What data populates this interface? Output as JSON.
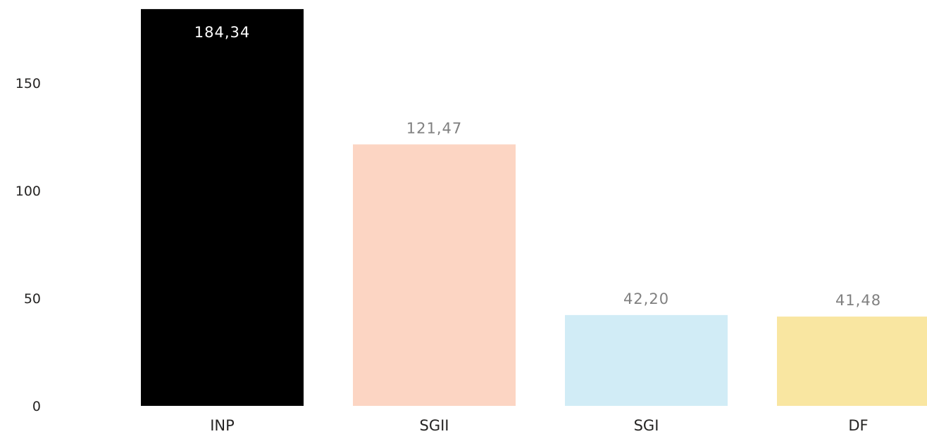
{
  "chart_data": {
    "type": "bar",
    "title": "",
    "xlabel": "",
    "ylabel": "",
    "categories": [
      "INP",
      "SGII",
      "SGI",
      "DF"
    ],
    "values": [
      184.34,
      121.47,
      42.2,
      41.48
    ],
    "data_labels": [
      "184,34",
      "121,47",
      "42,20",
      "41,48"
    ],
    "bar_colors": [
      "#000000",
      "#FCD5C3",
      "#D1ECF6",
      "#F9E6A1"
    ],
    "data_label_colors": [
      "#FFFFFF",
      "#808080",
      "#808080",
      "#808080"
    ],
    "data_label_inside": [
      true,
      false,
      false,
      false
    ],
    "ylim": [
      0,
      185
    ],
    "yticks": [
      0,
      50,
      100,
      150
    ],
    "ytick_labels": [
      "0",
      "50",
      "100",
      "150"
    ],
    "grid": false,
    "legend": "none"
  }
}
